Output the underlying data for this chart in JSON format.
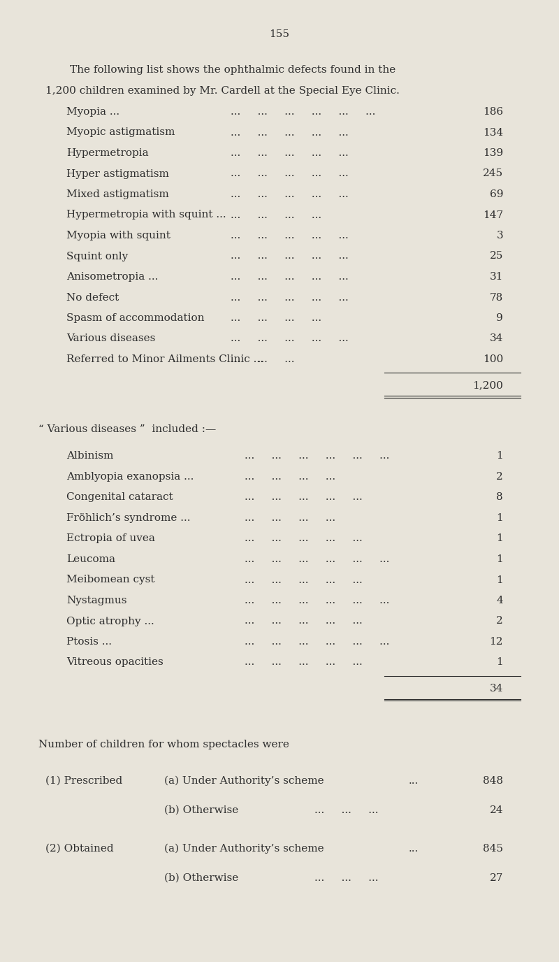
{
  "page_number": "155",
  "bg_color": "#e8e4da",
  "text_color": "#2e2e2e",
  "intro_line1": "The following list shows the ophthalmic defects found in the",
  "intro_line2": "1,200 children examined by Mr. Cardell at the Special Eye Clinic.",
  "main_items": [
    [
      "Myopia ...",
      "...     ...     ...     ...     ...     ...",
      "186"
    ],
    [
      "Myopic astigmatism",
      "...     ...     ...     ...     ...",
      "134"
    ],
    [
      "Hypermetropia",
      "...     ...     ...     ...     ...",
      "139"
    ],
    [
      "Hyper astigmatism",
      "...     ...     ...     ...     ...",
      "245"
    ],
    [
      "Mixed astigmatism",
      "...     ...     ...     ...     ...",
      "69"
    ],
    [
      "Hypermetropia with squint ...",
      "...     ...     ...     ...",
      "147"
    ],
    [
      "Myopia with squint",
      "...     ...     ...     ...     ...",
      "3"
    ],
    [
      "Squint only",
      "...     ...     ...     ...     ...",
      "25"
    ],
    [
      "Anisometropia ...",
      "...     ...     ...     ...     ...",
      "31"
    ],
    [
      "No defect",
      "...     ...     ...     ...     ...",
      "78"
    ],
    [
      "Spasm of accommodation",
      "...     ...     ...     ...",
      "9"
    ],
    [
      "Various diseases",
      "...     ...     ...     ...     ...",
      "34"
    ],
    [
      "Referred to Minor Ailments Clinic ...",
      "...     ...     ...",
      "100"
    ]
  ],
  "main_total": "1,200",
  "various_header": "“ Various diseases ”  included :—",
  "various_items": [
    [
      "Albinism",
      "...     ...     ...     ...     ...     ...",
      "1"
    ],
    [
      "Amblyopia exanopsia ...",
      "...     ...     ...     ...",
      "2"
    ],
    [
      "Congenital cataract",
      "...     ...     ...     ...     ...",
      "8"
    ],
    [
      "Fröhlich’s syndrome ...",
      "...     ...     ...     ...",
      "1"
    ],
    [
      "Ectropia of uvea",
      "...     ...     ...     ...     ...",
      "1"
    ],
    [
      "Leucoma",
      "...     ...     ...     ...     ...     ...",
      "1"
    ],
    [
      "Meibomean cyst",
      "...     ...     ...     ...     ...",
      "1"
    ],
    [
      "Nystagmus",
      "...     ...     ...     ...     ...     ...",
      "4"
    ],
    [
      "Optic atrophy ...",
      "...     ...     ...     ...     ...",
      "2"
    ],
    [
      "Ptosis ...",
      "...     ...     ...     ...     ...     ...",
      "12"
    ],
    [
      "Vitreous opacities",
      "...     ...     ...     ...     ...",
      "1"
    ]
  ],
  "various_total": "34",
  "spectacles_header": "Number of children for whom spectacles were",
  "spectacles": [
    [
      "(1) Prescribed",
      "(a) Under Authority’s scheme",
      "...",
      "848"
    ],
    [
      "",
      "(b) Otherwise",
      "...     ...     ...",
      "24"
    ],
    [
      "(2) Obtained",
      "(a) Under Authority’s scheme",
      "...",
      "845"
    ],
    [
      "",
      "(b) Otherwise",
      "...     ...     ...",
      "27"
    ]
  ]
}
